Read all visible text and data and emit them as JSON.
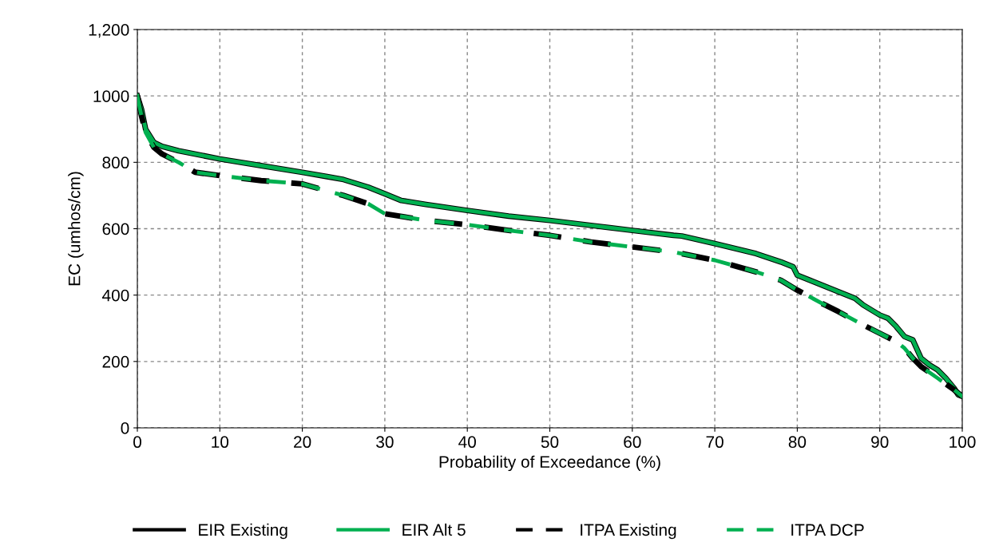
{
  "chart_data": {
    "type": "line",
    "xlabel": "Probability of Exceedance (%)",
    "ylabel": "EC (umhos/cm)",
    "xlim": [
      0,
      100
    ],
    "xticks": [
      0,
      10,
      20,
      30,
      40,
      50,
      60,
      70,
      80,
      90,
      100
    ],
    "ylim": [
      0,
      1200
    ],
    "yticks": [
      0,
      200,
      400,
      600,
      800,
      1000,
      {
        "value": 1200,
        "label": "1,200"
      }
    ],
    "grid": true,
    "legend": "bottom",
    "marker": "none",
    "series": [
      {
        "name": "EIR Existing",
        "color": "#000000",
        "line_style": "solid",
        "x": [
          0,
          0.5,
          1,
          2,
          3,
          5,
          10,
          15,
          20,
          23,
          25,
          28,
          30,
          32,
          35,
          40,
          45,
          50,
          55,
          60,
          65,
          66,
          70,
          75,
          78,
          79.5,
          80,
          82,
          85,
          87,
          88,
          90,
          91,
          92,
          93,
          94,
          95,
          96,
          97,
          98,
          99,
          99.5,
          100
        ],
        "values": [
          1000,
          960,
          900,
          860,
          848,
          835,
          810,
          790,
          770,
          757,
          748,
          725,
          705,
          685,
          673,
          655,
          638,
          625,
          610,
          595,
          580,
          578,
          555,
          525,
          500,
          485,
          460,
          440,
          410,
          390,
          370,
          340,
          330,
          305,
          275,
          265,
          210,
          190,
          175,
          150,
          120,
          100,
          95
        ]
      },
      {
        "name": "EIR Alt 5",
        "color": "#00b050",
        "line_style": "solid",
        "x": [
          0,
          0.5,
          1,
          2,
          3,
          5,
          10,
          15,
          20,
          23,
          25,
          28,
          30,
          32,
          35,
          40,
          45,
          50,
          55,
          60,
          65,
          66,
          70,
          75,
          78,
          79.5,
          80,
          82,
          85,
          87,
          88,
          90,
          91,
          92,
          93,
          94,
          95,
          96,
          97,
          98,
          99,
          99.5,
          100
        ],
        "values": [
          1000,
          960,
          900,
          860,
          848,
          835,
          810,
          790,
          770,
          757,
          748,
          725,
          705,
          685,
          673,
          655,
          638,
          625,
          610,
          595,
          580,
          578,
          555,
          525,
          500,
          485,
          460,
          440,
          410,
          390,
          370,
          340,
          330,
          305,
          275,
          265,
          210,
          190,
          175,
          150,
          120,
          100,
          95
        ]
      },
      {
        "name": "ITPA Existing",
        "color": "#000000",
        "line_style": "dashed",
        "x": [
          0,
          0.5,
          1,
          2,
          3,
          5,
          7,
          10,
          15,
          20,
          25,
          28,
          30,
          35,
          40,
          45,
          50,
          55,
          60,
          65,
          70,
          75,
          78,
          80,
          83,
          85,
          88,
          90,
          92,
          93,
          94,
          95,
          97,
          99,
          100
        ],
        "values": [
          1000,
          940,
          890,
          845,
          825,
          800,
          770,
          760,
          745,
          735,
          700,
          675,
          645,
          625,
          612,
          595,
          580,
          560,
          545,
          530,
          505,
          470,
          445,
          415,
          375,
          350,
          310,
          285,
          260,
          240,
          210,
          185,
          150,
          115,
          95
        ]
      },
      {
        "name": "ITPA DCP",
        "color": "#00b050",
        "line_style": "dashed",
        "x": [
          0,
          0.5,
          1,
          2,
          3,
          5,
          7,
          10,
          15,
          20,
          25,
          28,
          30,
          35,
          40,
          45,
          50,
          55,
          60,
          65,
          70,
          75,
          78,
          80,
          83,
          85,
          88,
          90,
          92,
          93,
          94,
          95,
          97,
          99,
          100
        ],
        "values": [
          1000,
          940,
          890,
          845,
          825,
          800,
          770,
          760,
          745,
          735,
          700,
          675,
          645,
          625,
          612,
          595,
          580,
          560,
          545,
          530,
          505,
          470,
          445,
          415,
          375,
          350,
          310,
          285,
          260,
          240,
          210,
          185,
          150,
          115,
          95
        ]
      }
    ]
  }
}
